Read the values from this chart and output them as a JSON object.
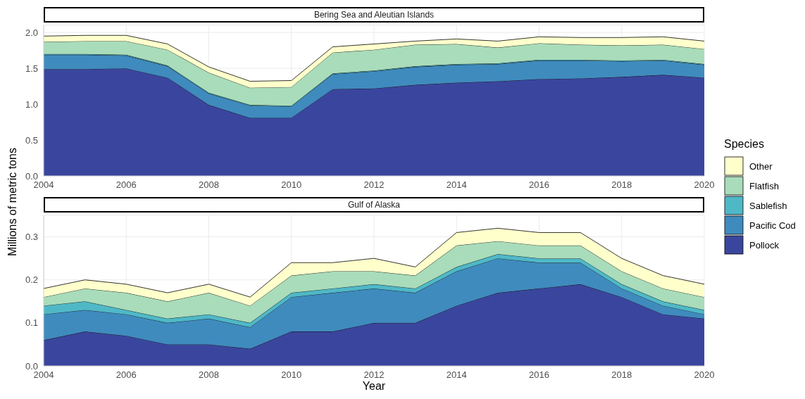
{
  "chart_data": [
    {
      "type": "area",
      "title": "Bering Sea and Aleutian Islands",
      "ylabel": "Millions of metric tons",
      "legend_title": "Species",
      "legend": "right",
      "stacked": true,
      "grid": true,
      "x": [
        2004,
        2005,
        2006,
        2007,
        2008,
        2009,
        2010,
        2011,
        2012,
        2013,
        2014,
        2015,
        2016,
        2017,
        2018,
        2019,
        2020
      ],
      "xlim": [
        2004,
        2020
      ],
      "xticks": [
        2004,
        2006,
        2008,
        2010,
        2012,
        2014,
        2016,
        2018,
        2020
      ],
      "ylim": [
        0,
        2.1
      ],
      "yticks": [
        {
          "value": 0,
          "label": "0.0"
        },
        {
          "value": 0.5,
          "label": "0.5"
        },
        {
          "value": 1,
          "label": "1.0"
        },
        {
          "value": 1.5,
          "label": "1.5"
        },
        {
          "value": 2,
          "label": "2.0"
        }
      ],
      "series": [
        {
          "name": "Pollock",
          "color": "#3a469d",
          "values": [
            1.49,
            1.49,
            1.5,
            1.37,
            0.99,
            0.81,
            0.81,
            1.21,
            1.22,
            1.27,
            1.3,
            1.32,
            1.35,
            1.36,
            1.38,
            1.41,
            1.37
          ]
        },
        {
          "name": "Pacific Cod",
          "color": "#3f8bbe",
          "values": [
            0.2,
            0.2,
            0.18,
            0.16,
            0.16,
            0.17,
            0.16,
            0.21,
            0.24,
            0.25,
            0.25,
            0.24,
            0.26,
            0.25,
            0.22,
            0.2,
            0.18
          ]
        },
        {
          "name": "Sablefish",
          "color": "#4fb8c7",
          "values": [
            0.01,
            0.01,
            0.01,
            0.01,
            0.01,
            0.01,
            0.01,
            0.01,
            0.01,
            0.01,
            0.01,
            0.01,
            0.01,
            0.01,
            0.01,
            0.01,
            0.01
          ]
        },
        {
          "name": "Flatfish",
          "color": "#a9dcba",
          "values": [
            0.17,
            0.18,
            0.19,
            0.22,
            0.28,
            0.24,
            0.26,
            0.29,
            0.29,
            0.3,
            0.28,
            0.22,
            0.23,
            0.21,
            0.21,
            0.21,
            0.21
          ]
        },
        {
          "name": "Other",
          "color": "#ffffcc",
          "values": [
            0.08,
            0.08,
            0.08,
            0.08,
            0.08,
            0.09,
            0.09,
            0.08,
            0.08,
            0.05,
            0.07,
            0.09,
            0.09,
            0.1,
            0.11,
            0.11,
            0.11
          ]
        }
      ]
    },
    {
      "type": "area",
      "title": "Gulf of Alaska",
      "xlabel": "Year",
      "stacked": true,
      "grid": true,
      "x": [
        2004,
        2005,
        2006,
        2007,
        2008,
        2009,
        2010,
        2011,
        2012,
        2013,
        2014,
        2015,
        2016,
        2017,
        2018,
        2019,
        2020
      ],
      "xlim": [
        2004,
        2020
      ],
      "xticks": [
        2004,
        2006,
        2008,
        2010,
        2012,
        2014,
        2016,
        2018,
        2020
      ],
      "ylim": [
        0,
        0.35
      ],
      "yticks": [
        {
          "value": 0,
          "label": "0.0"
        },
        {
          "value": 0.1,
          "label": "0.1"
        },
        {
          "value": 0.2,
          "label": "0.2"
        },
        {
          "value": 0.3,
          "label": "0.3"
        }
      ],
      "series": [
        {
          "color": "#3a469d",
          "values": [
            0.06,
            0.08,
            0.07,
            0.05,
            0.05,
            0.04,
            0.08,
            0.08,
            0.1,
            0.1,
            0.14,
            0.17,
            0.18,
            0.19,
            0.16,
            0.12,
            0.11
          ]
        },
        {
          "color": "#3f8bbe",
          "values": [
            0.06,
            0.05,
            0.05,
            0.05,
            0.06,
            0.05,
            0.08,
            0.09,
            0.08,
            0.07,
            0.08,
            0.08,
            0.06,
            0.05,
            0.02,
            0.02,
            0.01
          ]
        },
        {
          "color": "#4fb8c7",
          "values": [
            0.02,
            0.02,
            0.01,
            0.01,
            0.01,
            0.01,
            0.01,
            0.01,
            0.01,
            0.01,
            0.01,
            0.01,
            0.01,
            0.01,
            0.01,
            0.01,
            0.01
          ]
        },
        {
          "color": "#a9dcba",
          "values": [
            0.02,
            0.03,
            0.04,
            0.04,
            0.05,
            0.04,
            0.04,
            0.04,
            0.03,
            0.03,
            0.05,
            0.03,
            0.03,
            0.03,
            0.03,
            0.03,
            0.03
          ]
        },
        {
          "color": "#ffffcc",
          "values": [
            0.02,
            0.02,
            0.02,
            0.02,
            0.02,
            0.02,
            0.03,
            0.02,
            0.03,
            0.02,
            0.03,
            0.03,
            0.03,
            0.03,
            0.03,
            0.03,
            0.03
          ]
        }
      ]
    }
  ]
}
